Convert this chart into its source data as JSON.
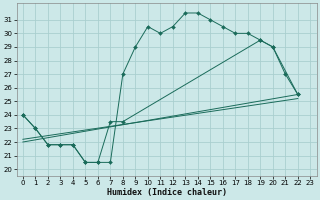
{
  "xlabel": "Humidex (Indice chaleur)",
  "bg_color": "#cce8e8",
  "grid_color": "#aacfcf",
  "line_color": "#1a6b5a",
  "xlim": [
    -0.5,
    23.5
  ],
  "ylim": [
    19.5,
    32.2
  ],
  "xticks": [
    0,
    1,
    2,
    3,
    4,
    5,
    6,
    7,
    8,
    9,
    10,
    11,
    12,
    13,
    14,
    15,
    16,
    17,
    18,
    19,
    20,
    21,
    22,
    23
  ],
  "yticks": [
    20,
    21,
    22,
    23,
    24,
    25,
    26,
    27,
    28,
    29,
    30,
    31
  ],
  "line1_x": [
    0,
    1,
    2,
    3,
    4,
    5,
    6,
    7,
    8,
    9,
    10,
    11,
    12,
    13,
    14,
    15,
    16,
    17,
    18,
    19,
    20,
    21,
    22
  ],
  "line1_y": [
    24,
    23,
    21.8,
    21.8,
    21.8,
    20.5,
    20.5,
    20.5,
    27,
    29,
    30.5,
    30,
    30.5,
    31.5,
    31.5,
    31,
    30.5,
    30,
    30,
    29.5,
    29,
    27,
    25.5
  ],
  "line2_x": [
    0,
    1,
    2,
    3,
    4,
    5,
    6,
    7,
    8,
    19,
    20,
    22
  ],
  "line2_y": [
    24,
    23,
    21.8,
    21.8,
    21.8,
    20.5,
    20.5,
    23.5,
    23.5,
    29.5,
    29,
    25.5
  ],
  "line3_x": [
    0,
    22
  ],
  "line3_y": [
    22,
    25.5
  ],
  "line4_x": [
    0,
    22
  ],
  "line4_y": [
    22.2,
    25.2
  ]
}
